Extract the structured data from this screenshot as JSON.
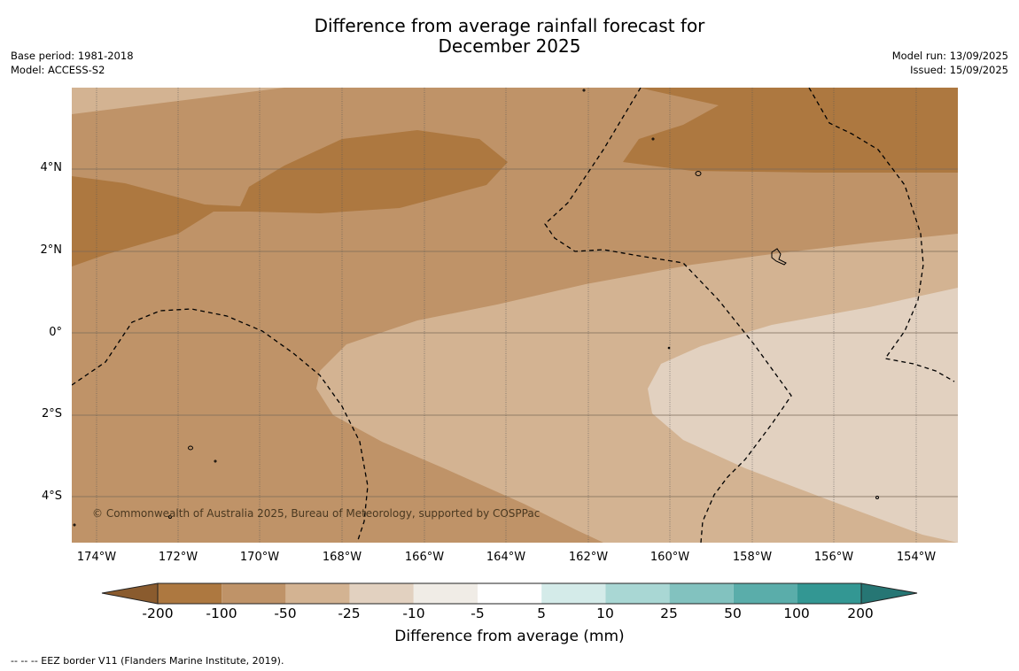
{
  "title": {
    "line1": "Difference from average rainfall forecast for",
    "line2": "December 2025"
  },
  "meta": {
    "base_period": "Base period: 1981-2018",
    "model": "Model: ACCESS-S2",
    "model_run": "Model run: 13/09/2025",
    "issued": "Issued: 15/09/2025"
  },
  "lat_labels": [
    "4°N",
    "2°N",
    "0°",
    "2°S",
    "4°S"
  ],
  "lon_labels": [
    "174°W",
    "172°W",
    "170°W",
    "168°W",
    "166°W",
    "164°W",
    "162°W",
    "160°W",
    "158°W",
    "156°W",
    "154°W"
  ],
  "copyright": "© Commonwealth of Australia 2025, Bureau of Meteorology, supported by COSPPac",
  "legend": {
    "title": "Difference from average (mm)",
    "tick_labels": [
      "-200",
      "-100",
      "-50",
      "-25",
      "-10",
      "-5",
      "5",
      "10",
      "25",
      "50",
      "100",
      "200"
    ],
    "colors": [
      "#8a5b2e",
      "#ad7840",
      "#bf9368",
      "#d3b392",
      "#e2d1c0",
      "#f0ece6",
      "#ffffff",
      "#d4ebe9",
      "#a9d7d4",
      "#82c2bf",
      "#5aadaa",
      "#339793",
      "#267674"
    ],
    "extend": "both"
  },
  "footnote": "--  --  -- EEZ border V11 (Flanders Marine Institute, 2019)."
}
